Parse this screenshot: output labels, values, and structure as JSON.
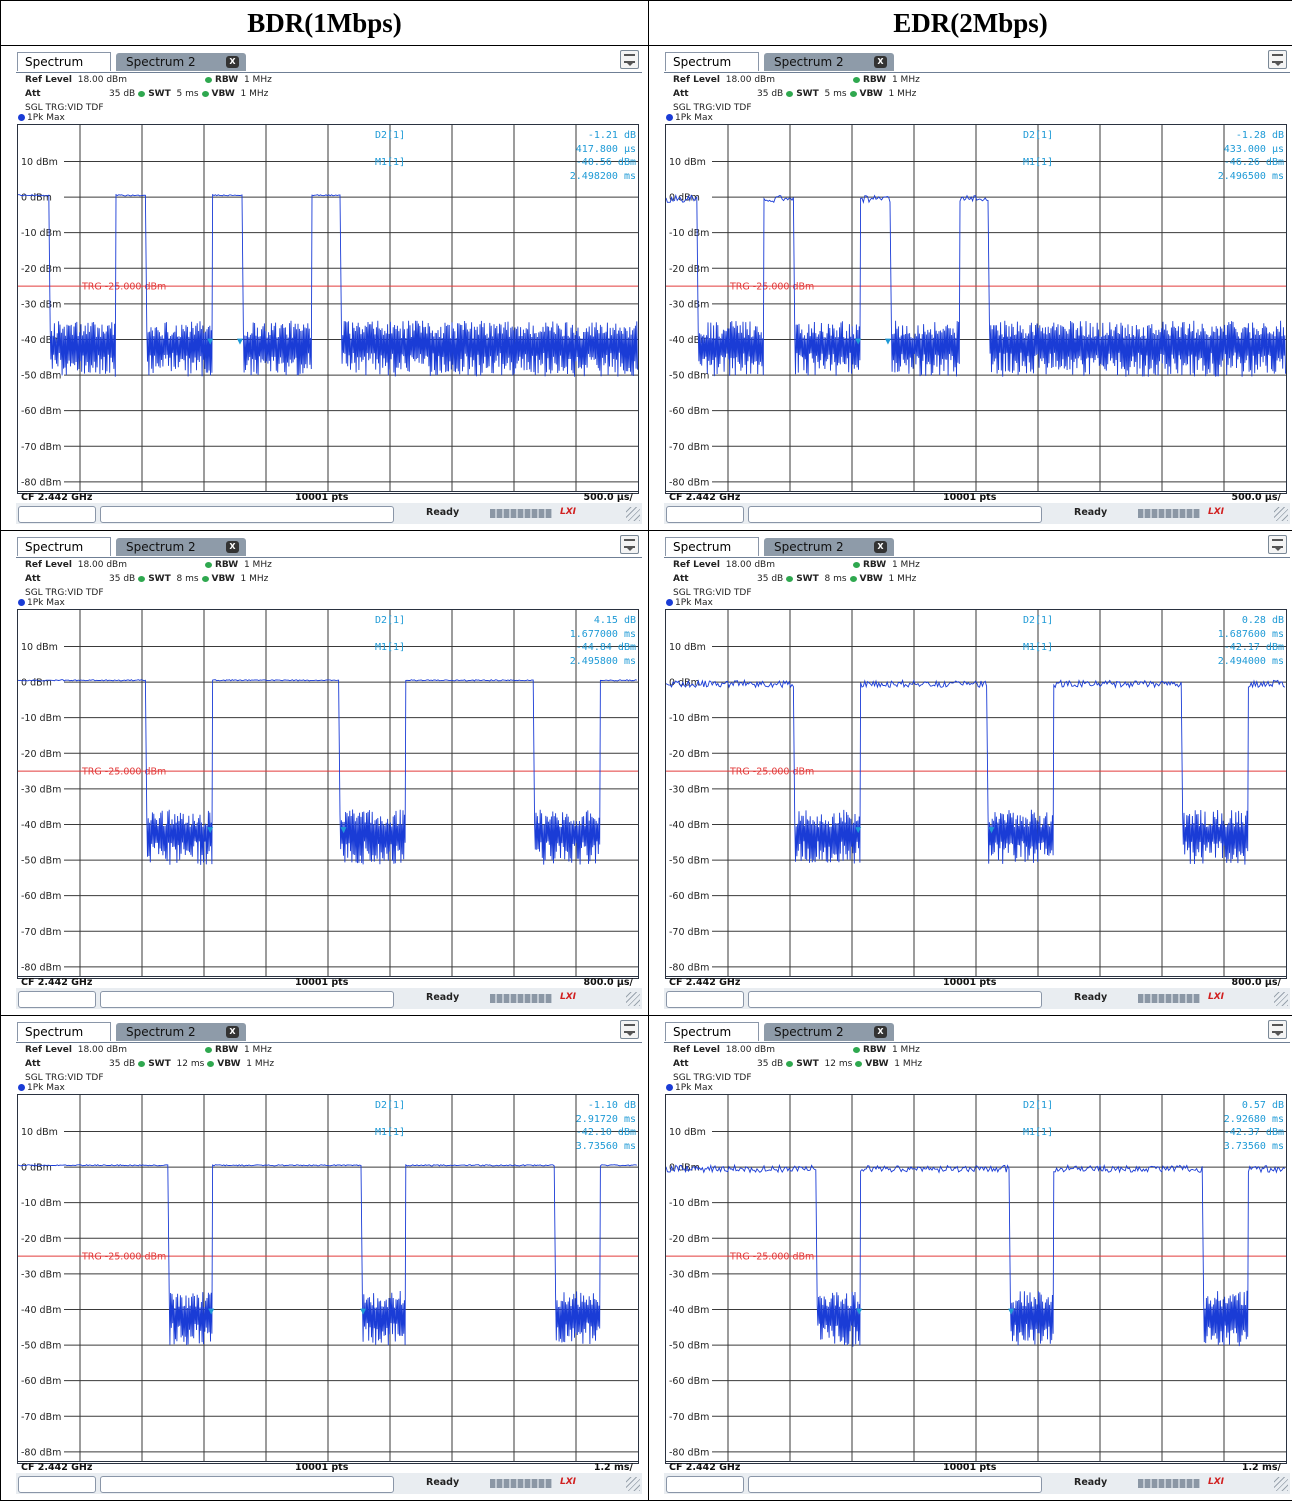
{
  "header": {
    "col1": "BDR(1Mbps)",
    "col2": "EDR(2Mbps)"
  },
  "common": {
    "tab1": "Spectrum",
    "tab2": "Spectrum 2",
    "close_glyph": "X",
    "ref_label": "Ref Level",
    "ref_value": "18.00 dBm",
    "att_label": "Att",
    "att_value": "35 dB",
    "swt_label": "SWT",
    "rbw_label": "RBW",
    "rbw_value": "1 MHz",
    "vbw_label": "VBW",
    "vbw_value": "1 MHz",
    "trigger": "SGL TRG:VID TDF",
    "trace": "1Pk Max",
    "d2_label": "D2[1]",
    "m1_label": "M1[1]",
    "cf": "CF 2.442 GHz",
    "pts": "10001 pts",
    "ready": "Ready",
    "trg_label": "TRG  -25.000 dBm",
    "trg_level": -25,
    "y_ticks": [
      "10 dBm",
      "0 dBm",
      "-10 dBm",
      "-20 dBm",
      "-30 dBm",
      "-40 dBm",
      "-50 dBm",
      "-60 dBm",
      "-70 dBm",
      "-80 dBm"
    ],
    "icons": {
      "close": "close-icon",
      "menu": "menu-icon",
      "resize": "resize-grip-icon"
    },
    "colors": {
      "trace": "#1a3cd6",
      "trigger": "#e23b3b",
      "marker": "#1e9ad6",
      "grid": "#2a2a2a"
    }
  },
  "chart_data": [
    {
      "type": "line",
      "panel": "BDR 5 ms",
      "sweep_ms": 5,
      "div_label": "500.0 µs/",
      "swt": "5 ms",
      "ylim": [
        -82,
        18
      ],
      "ylabel_unit": "dBm",
      "d2": {
        "delta": "-1.21 dB",
        "time": "417.800 µs"
      },
      "m1": {
        "level": "-40.56 dBm",
        "time": "2.498200 ms"
      },
      "on_level_dbm": 0.5,
      "off_level_dbm": -42,
      "bursts_ms": [
        [
          0,
          0.25
        ],
        [
          0.78,
          1.03
        ],
        [
          1.56,
          1.81
        ],
        [
          2.36,
          2.6
        ]
      ],
      "markers_ms": {
        "M1": 1.55,
        "D2": 1.79
      }
    },
    {
      "type": "line",
      "panel": "EDR 5 ms",
      "sweep_ms": 5,
      "div_label": "500.0 µs/",
      "swt": "5 ms",
      "ylim": [
        -82,
        18
      ],
      "ylabel_unit": "dBm",
      "d2": {
        "delta": "-1.28 dB",
        "time": "433.000 µs"
      },
      "m1": {
        "level": "-46.26 dBm",
        "time": "2.496500 ms"
      },
      "on_level_dbm": -0.5,
      "off_level_dbm": -42,
      "bursts_ms": [
        [
          0,
          0.25
        ],
        [
          0.78,
          1.03
        ],
        [
          1.56,
          1.81
        ],
        [
          2.36,
          2.6
        ]
      ],
      "markers_ms": {
        "M1": 1.55,
        "D2": 1.79
      }
    },
    {
      "type": "line",
      "panel": "BDR 8 ms",
      "sweep_ms": 8,
      "div_label": "800.0 µs/",
      "swt": "8 ms",
      "ylim": [
        -82,
        18
      ],
      "ylabel_unit": "dBm",
      "d2": {
        "delta": "4.15 dB",
        "time": "1.677000 ms"
      },
      "m1": {
        "level": "-44.84 dBm",
        "time": "2.495800 ms"
      },
      "on_level_dbm": 0.5,
      "off_level_dbm": -43,
      "bursts_ms": [
        [
          0,
          1.65
        ],
        [
          2.5,
          4.15
        ],
        [
          5.0,
          6.65
        ],
        [
          7.5,
          8.0
        ]
      ],
      "markers_ms": {
        "M1": 2.48,
        "D2": 4.2
      }
    },
    {
      "type": "line",
      "panel": "EDR 8 ms",
      "sweep_ms": 8,
      "div_label": "800.0 µs/",
      "swt": "8 ms",
      "ylim": [
        -82,
        18
      ],
      "ylabel_unit": "dBm",
      "d2": {
        "delta": "0.28 dB",
        "time": "1.687600 ms"
      },
      "m1": {
        "level": "-42.17 dBm",
        "time": "2.494000 ms"
      },
      "on_level_dbm": -0.5,
      "off_level_dbm": -43,
      "bursts_ms": [
        [
          0,
          1.65
        ],
        [
          2.5,
          4.15
        ],
        [
          5.0,
          6.65
        ],
        [
          7.5,
          8.0
        ]
      ],
      "markers_ms": {
        "M1": 2.48,
        "D2": 4.2
      }
    },
    {
      "type": "line",
      "panel": "BDR 12 ms",
      "sweep_ms": 12,
      "div_label": "1.2 ms/",
      "swt": "12 ms",
      "ylim": [
        -82,
        18
      ],
      "ylabel_unit": "dBm",
      "d2": {
        "delta": "-1.10 dB",
        "time": "2.91720 ms"
      },
      "m1": {
        "level": "-42.10 dBm",
        "time": "3.73560 ms"
      },
      "on_level_dbm": 0.5,
      "off_level_dbm": -42,
      "bursts_ms": [
        [
          0,
          2.9
        ],
        [
          3.75,
          6.65
        ],
        [
          7.5,
          10.4
        ],
        [
          11.25,
          12.0
        ]
      ],
      "markers_ms": {
        "M1": 3.74,
        "D2": 6.68
      }
    },
    {
      "type": "line",
      "panel": "EDR 12 ms",
      "sweep_ms": 12,
      "div_label": "1.2 ms/",
      "swt": "12 ms",
      "ylim": [
        -82,
        18
      ],
      "ylabel_unit": "dBm",
      "d2": {
        "delta": "0.57 dB",
        "time": "2.92680 ms"
      },
      "m1": {
        "level": "-42.37 dBm",
        "time": "3.73560 ms"
      },
      "on_level_dbm": -0.5,
      "off_level_dbm": -42,
      "bursts_ms": [
        [
          0,
          2.9
        ],
        [
          3.75,
          6.65
        ],
        [
          7.5,
          10.4
        ],
        [
          11.25,
          12.0
        ]
      ],
      "markers_ms": {
        "M1": 3.74,
        "D2": 6.68
      }
    }
  ]
}
